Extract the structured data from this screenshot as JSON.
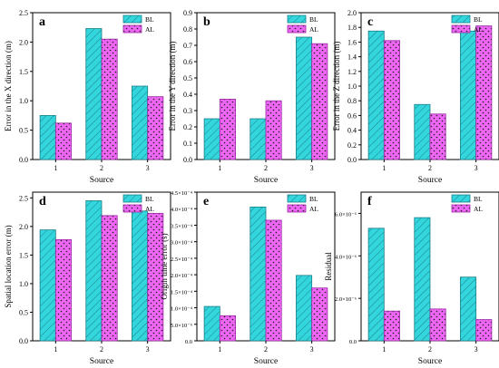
{
  "figure": {
    "colors": {
      "BL": "#33d6dc",
      "AL": "#ee66f4",
      "BL_hatch": "#1a7f8a",
      "AL_dots": "#222222"
    },
    "legend": [
      "BL",
      "AL"
    ]
  },
  "chart_data": [
    {
      "panel": "a",
      "type": "bar",
      "categories": [
        "1",
        "2",
        "3"
      ],
      "series": [
        {
          "name": "BL",
          "values": [
            0.75,
            2.23,
            1.25
          ]
        },
        {
          "name": "AL",
          "values": [
            0.62,
            2.05,
            1.07
          ]
        }
      ],
      "xlabel": "Source",
      "ylabel": "Error in the X direction (m)",
      "ylim": [
        0,
        2.5
      ],
      "yticks": [
        "0.0",
        "0.5",
        "1.0",
        "1.5",
        "2.0",
        "2.5"
      ],
      "legend_position": "top-right"
    },
    {
      "panel": "b",
      "type": "bar",
      "categories": [
        "1",
        "2",
        "3"
      ],
      "series": [
        {
          "name": "BL",
          "values": [
            0.25,
            0.25,
            0.75
          ]
        },
        {
          "name": "AL",
          "values": [
            0.37,
            0.36,
            0.71
          ]
        }
      ],
      "xlabel": "Source",
      "ylabel": "Error in the Y direction (m)",
      "ylim": [
        0,
        0.9
      ],
      "yticks": [
        "0.0",
        "0.1",
        "0.2",
        "0.3",
        "0.4",
        "0.5",
        "0.6",
        "0.7",
        "0.8",
        "0.9"
      ],
      "legend_position": "top-right"
    },
    {
      "panel": "c",
      "type": "bar",
      "categories": [
        "1",
        "2",
        "3"
      ],
      "series": [
        {
          "name": "BL",
          "values": [
            1.75,
            0.75,
            1.75
          ]
        },
        {
          "name": "AL",
          "values": [
            1.62,
            0.62,
            1.82
          ]
        }
      ],
      "xlabel": "Source",
      "ylabel": "Error in the Z direction (m)",
      "ylim": [
        0,
        2.0
      ],
      "yticks": [
        "0.0",
        "0.2",
        "0.4",
        "0.6",
        "0.8",
        "1.0",
        "1.2",
        "1.4",
        "1.6",
        "1.8",
        "2.0"
      ],
      "legend_position": "top-right"
    },
    {
      "panel": "d",
      "type": "bar",
      "categories": [
        "1",
        "2",
        "3"
      ],
      "series": [
        {
          "name": "BL",
          "values": [
            1.94,
            2.45,
            2.27
          ]
        },
        {
          "name": "AL",
          "values": [
            1.77,
            2.19,
            2.23
          ]
        }
      ],
      "xlabel": "Source",
      "ylabel": "Spatial location error (m)",
      "ylim": [
        0,
        2.6
      ],
      "yticks": [
        "0.0",
        "0.5",
        "1.0",
        "1.5",
        "2.0",
        "2.5"
      ],
      "legend_position": "top-right"
    },
    {
      "panel": "e",
      "type": "bar",
      "categories": [
        "1",
        "2",
        "3"
      ],
      "series": [
        {
          "name": "BL",
          "values": [
            0.000104,
            0.000405,
            0.000198
          ]
        },
        {
          "name": "AL",
          "values": [
            7.6e-05,
            0.000365,
            0.00016
          ]
        }
      ],
      "xlabel": "Source",
      "ylabel": "Origin time error (s)",
      "ylim": [
        0,
        0.00045
      ],
      "yticks": [
        "0.0",
        "5.0×10⁻⁵",
        "1.0×10⁻⁴",
        "1.5×10⁻⁴",
        "2.0×10⁻⁴",
        "2.5×10⁻⁴",
        "3.0×10⁻⁴",
        "3.5×10⁻⁴",
        "4.0×10⁻⁴",
        "4.5×10⁻⁴"
      ],
      "legend_position": "top-right"
    },
    {
      "panel": "f",
      "type": "bar",
      "categories": [
        "1",
        "2",
        "3"
      ],
      "series": [
        {
          "name": "BL",
          "values": [
            5.3e-06,
            5.8e-06,
            3e-06
          ]
        },
        {
          "name": "AL",
          "values": [
            1.4e-06,
            1.5e-06,
            1e-06
          ]
        }
      ],
      "xlabel": "Source",
      "ylabel": "Residual",
      "ylim": [
        0,
        7e-06
      ],
      "yticks": [
        "0.0",
        "2.0×10⁻⁶",
        "4.0×10⁻⁶",
        "6.0×10⁻⁶"
      ],
      "legend_position": "top-right"
    }
  ]
}
